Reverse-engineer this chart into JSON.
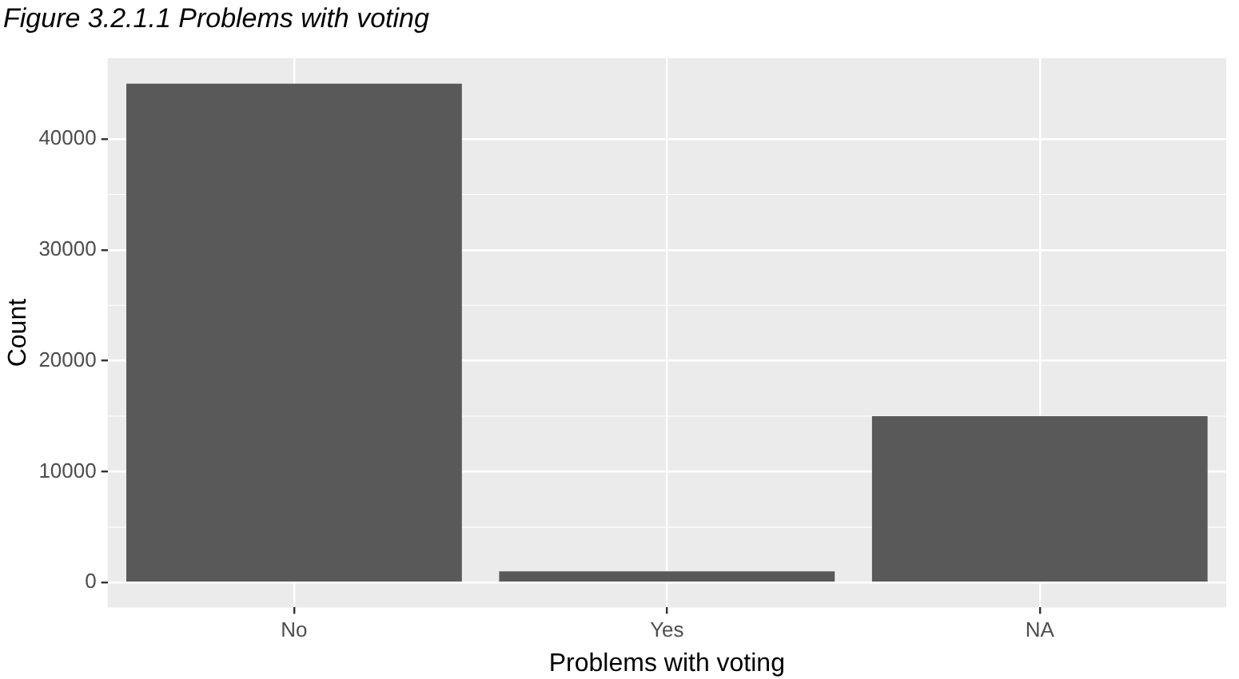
{
  "chart_data": {
    "type": "bar",
    "title": "Figure 3.2.1.1 Problems with voting",
    "xlabel": "Problems with voting",
    "ylabel": "Count",
    "categories": [
      "No",
      "Yes",
      "NA"
    ],
    "values": [
      45000,
      1000,
      15000
    ],
    "color": "#595959",
    "ylim": [
      -2250,
      47300
    ],
    "yticks": [
      0,
      10000,
      20000,
      30000,
      40000
    ],
    "grid": true
  }
}
